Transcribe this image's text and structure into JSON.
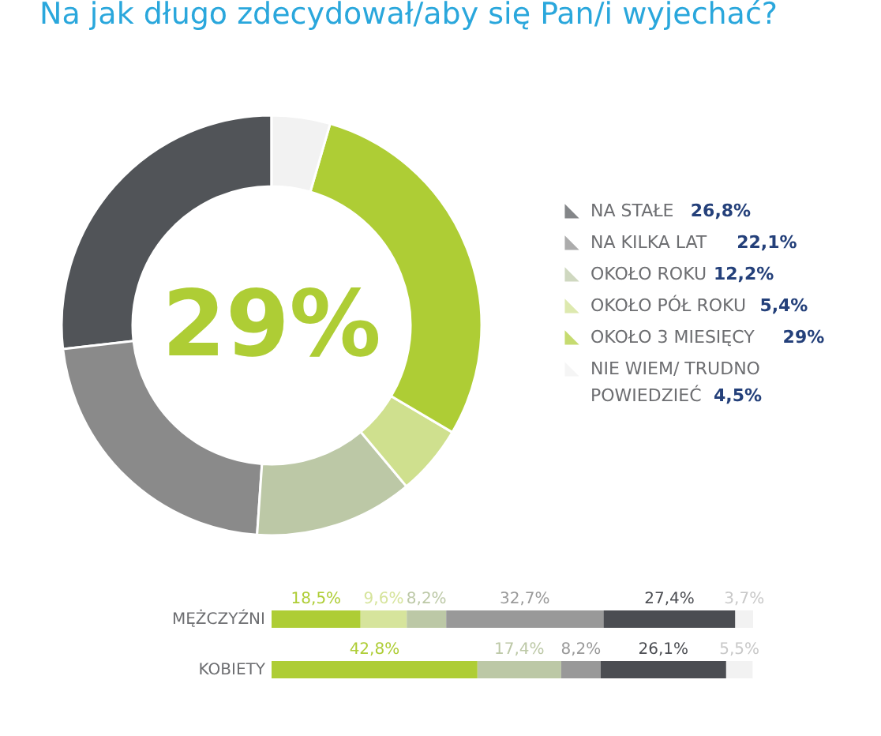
{
  "chart_data": [
    {
      "type": "donut",
      "title": "Na jak długo zdecydował/aby się Pan/i wyjechać?",
      "categories": [
        "NA STAŁE",
        "NA KILKA LAT",
        "OKOŁO ROKU",
        "OKOŁO PÓŁ ROKU",
        "OKOŁO 3 MIESIĘCY",
        "NIE WIEM/ TRUDNO POWIEDZIEĆ"
      ],
      "values": [
        26.8,
        22.1,
        12.2,
        5.4,
        29,
        4.5
      ],
      "colors": [
        "#515458",
        "#8a8a8a",
        "#bcc8a6",
        "#cfe08e",
        "#aecd35",
        "#f2f2f2"
      ],
      "value_labels": [
        "26,8%",
        "22,1%",
        "12,2%",
        "5,4%",
        "29%",
        "4,5%"
      ],
      "annotations": [
        "29%"
      ],
      "legend": "right"
    },
    {
      "type": "bar",
      "orientation": "horizontal",
      "stacked": true,
      "categories": [
        "MĘŻCZYŹNI",
        "KOBIETY"
      ],
      "series": [
        {
          "color": "#aecd35",
          "values": [
            18.5,
            42.8
          ],
          "value_labels": [
            "18,5%",
            "42,8%"
          ]
        },
        {
          "color": "#d6e49c",
          "values": [
            9.6,
            null
          ],
          "value_labels": [
            "9,6%",
            null
          ]
        },
        {
          "color": "#bcc8a6",
          "values": [
            8.2,
            17.4
          ],
          "value_labels": [
            "8,2%",
            "17,4%"
          ]
        },
        {
          "color": "#999999",
          "values": [
            32.7,
            8.2
          ],
          "value_labels": [
            "32,7%",
            "8,2%"
          ]
        },
        {
          "color": "#4b4d52",
          "values": [
            27.4,
            26.1
          ],
          "value_labels": [
            "27,4%",
            "26,1%"
          ]
        },
        {
          "color": "#f2f2f2",
          "values": [
            3.7,
            5.5
          ],
          "value_labels": [
            "3,7%",
            "5,5%"
          ]
        }
      ]
    }
  ]
}
